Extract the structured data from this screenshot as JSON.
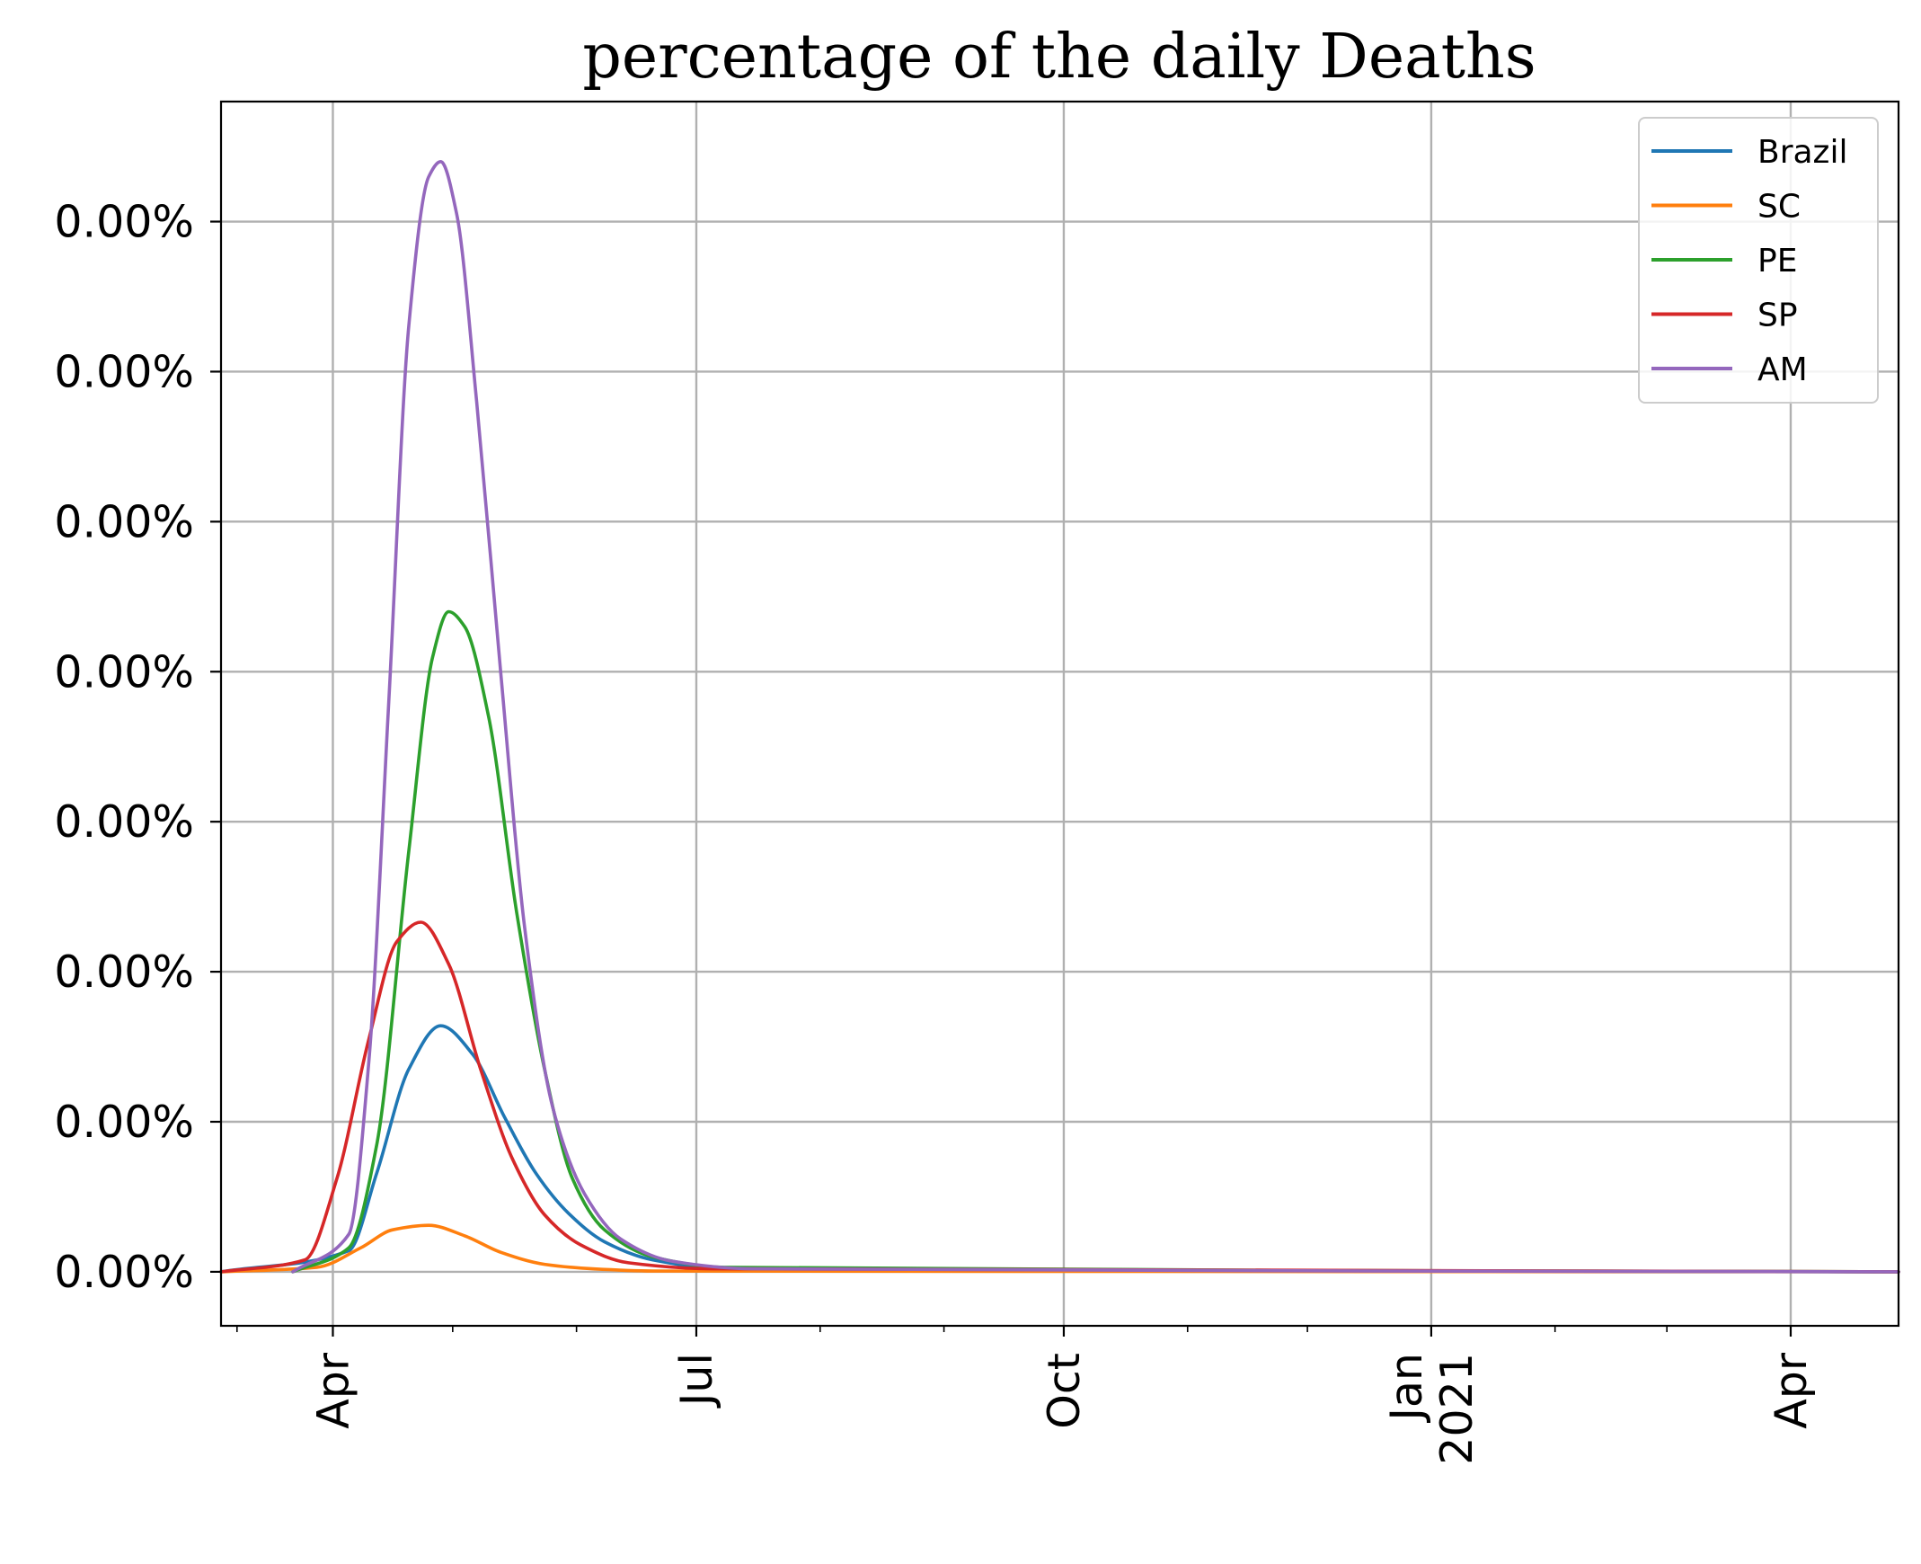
{
  "chart_data": {
    "type": "line",
    "title": "percentage of the daily Deaths",
    "xlabel": "",
    "ylabel": "",
    "x_axis": {
      "type": "date",
      "range": [
        "2020-03-04",
        "2021-04-28"
      ],
      "major_ticks": [
        {
          "date": "2020-04-01",
          "label": "Apr"
        },
        {
          "date": "2020-07-01",
          "label": "Jul"
        },
        {
          "date": "2020-10-01",
          "label": "Oct"
        },
        {
          "date": "2021-01-01",
          "label": "Jan\n2021"
        },
        {
          "date": "2021-04-01",
          "label": "Apr"
        }
      ],
      "minor_ticks": [
        "2020-03-08",
        "2020-05-01",
        "2020-06-01",
        "2020-08-01",
        "2020-09-01",
        "2020-11-01",
        "2020-12-01",
        "2021-02-01",
        "2021-03-01"
      ],
      "label_rotation": "vertical"
    },
    "y_axis": {
      "range": [
        -3.6e-05,
        0.00078
      ],
      "tick_values": [
        0.0,
        0.0001,
        0.0002,
        0.0003,
        0.0004,
        0.0005,
        0.0006,
        0.0007
      ],
      "tick_labels": [
        "0.00%",
        "0.00%",
        "0.00%",
        "0.00%",
        "0.00%",
        "0.00%",
        "0.00%",
        "0.00%"
      ]
    },
    "grid": true,
    "legend_position": "top-right",
    "series": [
      {
        "name": "Brazil",
        "color": "#1f77b4",
        "start": "2020-03-04",
        "points": [
          [
            "2020-04-05",
            1.4e-05
          ],
          [
            "2020-04-12",
            6.6e-05
          ],
          [
            "2020-04-20",
            0.000135
          ],
          [
            "2020-04-28",
            0.000164
          ],
          [
            "2020-05-06",
            0.000145
          ],
          [
            "2020-05-14",
            0.000103
          ],
          [
            "2020-05-22",
            6.5e-05
          ],
          [
            "2020-05-30",
            3.9e-05
          ],
          [
            "2020-06-08",
            2e-05
          ],
          [
            "2020-06-20",
            8e-06
          ],
          [
            "2020-07-08",
            2e-06
          ]
        ]
      },
      {
        "name": "SC",
        "color": "#ff7f0e",
        "start": "2020-03-04",
        "points": [
          [
            "2020-03-28",
            3e-06
          ],
          [
            "2020-04-08",
            1.6e-05
          ],
          [
            "2020-04-16",
            2.8e-05
          ],
          [
            "2020-04-25",
            3.1e-05
          ],
          [
            "2020-05-04",
            2.4e-05
          ],
          [
            "2020-05-13",
            1.3e-05
          ],
          [
            "2020-05-24",
            5e-06
          ],
          [
            "2020-06-05",
            2e-06
          ],
          [
            "2020-06-20",
            5e-07
          ]
        ]
      },
      {
        "name": "PE",
        "color": "#2ca02c",
        "start": "2020-03-22",
        "points": [
          [
            "2020-04-05",
            1.6e-05
          ],
          [
            "2020-04-12",
            8.5e-05
          ],
          [
            "2020-04-20",
            0.00028
          ],
          [
            "2020-04-26",
            0.00041
          ],
          [
            "2020-04-30",
            0.00044
          ],
          [
            "2020-05-04",
            0.00043
          ],
          [
            "2020-05-10",
            0.00037
          ],
          [
            "2020-05-17",
            0.00024
          ],
          [
            "2020-05-24",
            0.000135
          ],
          [
            "2020-05-31",
            6.2e-05
          ],
          [
            "2020-06-08",
            2.8e-05
          ],
          [
            "2020-06-20",
            1e-05
          ],
          [
            "2020-07-08",
            3e-06
          ]
        ]
      },
      {
        "name": "SP",
        "color": "#d62728",
        "start": "2020-03-04",
        "points": [
          [
            "2020-03-25",
            8e-06
          ],
          [
            "2020-04-02",
            6.2e-05
          ],
          [
            "2020-04-10",
            0.000155
          ],
          [
            "2020-04-17",
            0.00022
          ],
          [
            "2020-04-23",
            0.000233
          ],
          [
            "2020-04-30",
            0.000205
          ],
          [
            "2020-05-08",
            0.000135
          ],
          [
            "2020-05-16",
            7.5e-05
          ],
          [
            "2020-05-24",
            3.8e-05
          ],
          [
            "2020-06-02",
            1.8e-05
          ],
          [
            "2020-06-14",
            6e-06
          ],
          [
            "2020-07-05",
            2e-06
          ]
        ]
      },
      {
        "name": "AM",
        "color": "#9467bd",
        "start": "2020-03-22",
        "points": [
          [
            "2020-04-05",
            2.5e-05
          ],
          [
            "2020-04-10",
            0.00014
          ],
          [
            "2020-04-15",
            0.00038
          ],
          [
            "2020-04-20",
            0.00063
          ],
          [
            "2020-04-25",
            0.00073
          ],
          [
            "2020-04-28",
            0.00074
          ],
          [
            "2020-05-02",
            0.000705
          ],
          [
            "2020-05-07",
            0.00058
          ],
          [
            "2020-05-13",
            0.0004
          ],
          [
            "2020-05-19",
            0.00023
          ],
          [
            "2020-05-26",
            0.00011
          ],
          [
            "2020-06-03",
            5.2e-05
          ],
          [
            "2020-06-12",
            2.2e-05
          ],
          [
            "2020-06-25",
            7e-06
          ],
          [
            "2020-07-15",
            2e-06
          ]
        ]
      }
    ]
  }
}
